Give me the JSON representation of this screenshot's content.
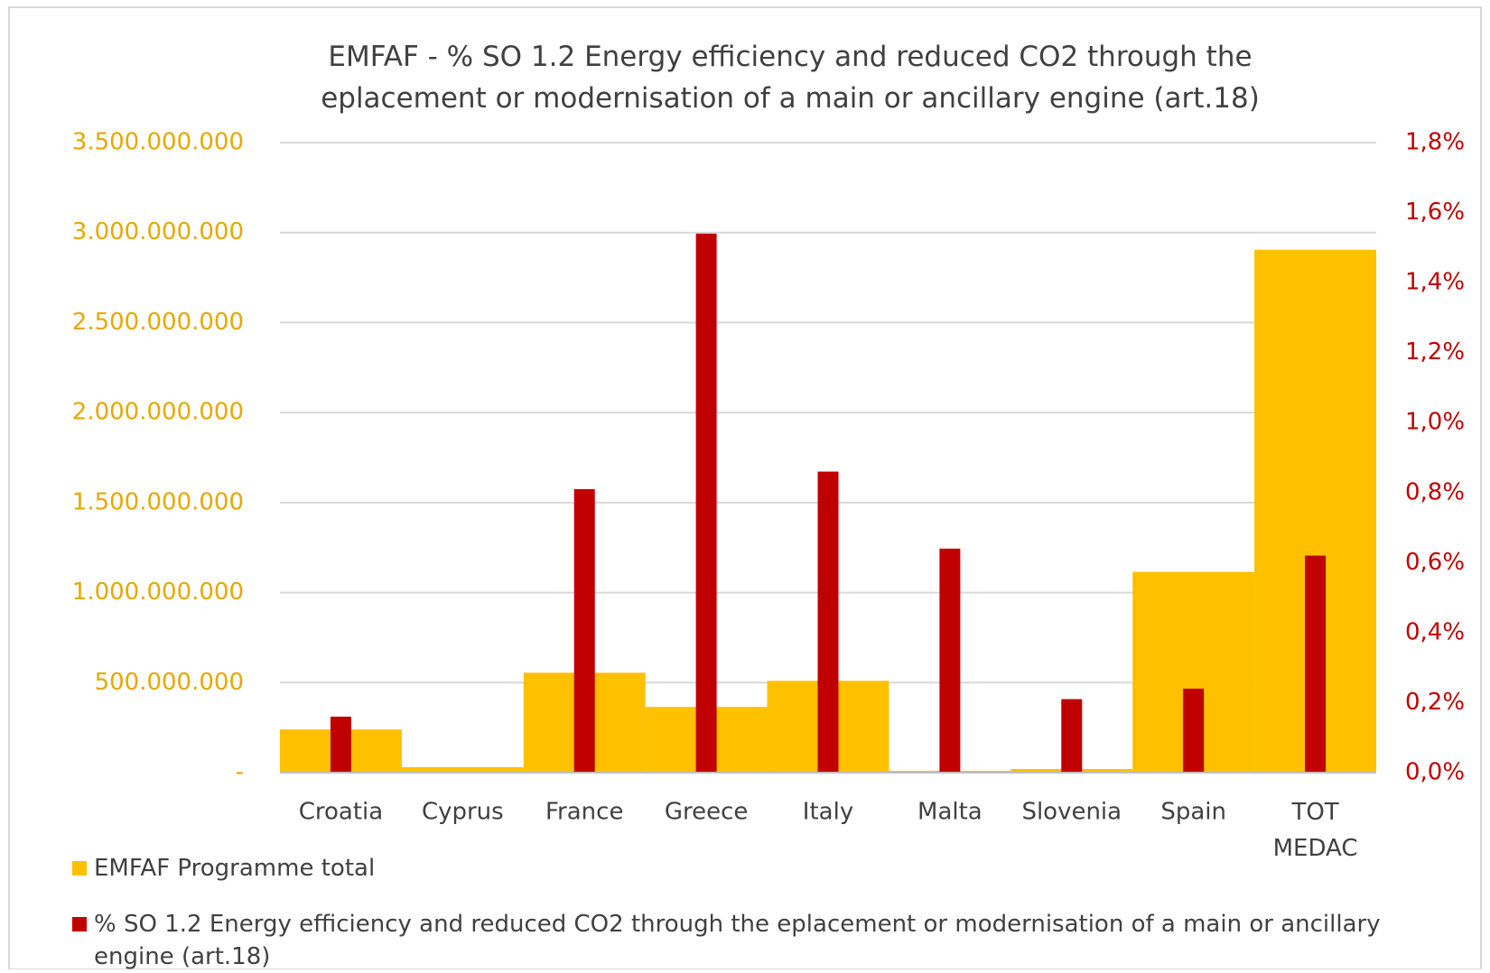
{
  "chart_data": {
    "type": "bar",
    "title": "EMFAF - % SO 1.2 Energy efficiency and reduced CO2 through the eplacement or modernisation of a main or ancillary engine (art.18)",
    "categories": [
      "Croatia",
      "Cyprus",
      "France",
      "Greece",
      "Italy",
      "Malta",
      "Slovenia",
      "Spain",
      "TOT MEDAC"
    ],
    "series": [
      {
        "name": "EMFAF Programme total",
        "color": "#FFC000",
        "values": [
          240000000,
          30000000,
          555000000,
          365000000,
          510000000,
          10000000,
          20000000,
          1115000000,
          2905000000
        ]
      },
      {
        "name": "% SO 1.2 Energy efficiency and reduced CO2 through the eplacement or modernisation of a main or ancillary engine (art.18)",
        "color": "#C00000",
        "axis": "y2",
        "values": [
          0.16,
          0,
          0.81,
          1.54,
          0.86,
          0.64,
          0.21,
          0.24,
          0.62
        ]
      }
    ],
    "ylim": [
      0,
      3500000000
    ],
    "yticks": [
      {
        "value": 0,
        "label": "-"
      },
      {
        "value": 500000000,
        "label": "500.000.000"
      },
      {
        "value": 1000000000,
        "label": "1.000.000.000"
      },
      {
        "value": 1500000000,
        "label": "1.500.000.000"
      },
      {
        "value": 2000000000,
        "label": "2.000.000.000"
      },
      {
        "value": 2500000000,
        "label": "2.500.000.000"
      },
      {
        "value": 3000000000,
        "label": "3.000.000.000"
      },
      {
        "value": 3500000000,
        "label": "3.500.000.000"
      }
    ],
    "y2lim": [
      0,
      1.8
    ],
    "y2ticks": [
      {
        "value": 0,
        "label": "0,0%"
      },
      {
        "value": 0.2,
        "label": "0,2%"
      },
      {
        "value": 0.4,
        "label": "0,4%"
      },
      {
        "value": 0.6,
        "label": "0,6%"
      },
      {
        "value": 0.8,
        "label": "0,8%"
      },
      {
        "value": 1.0,
        "label": "1,0%"
      },
      {
        "value": 1.2,
        "label": "1,2%"
      },
      {
        "value": 1.4,
        "label": "1,4%"
      },
      {
        "value": 1.6,
        "label": "1,6%"
      },
      {
        "value": 1.8,
        "label": "1,8%"
      }
    ],
    "grid": true,
    "legend": "bottom",
    "ytick_color": "#E6A800",
    "y2tick_color": "#C00000"
  }
}
